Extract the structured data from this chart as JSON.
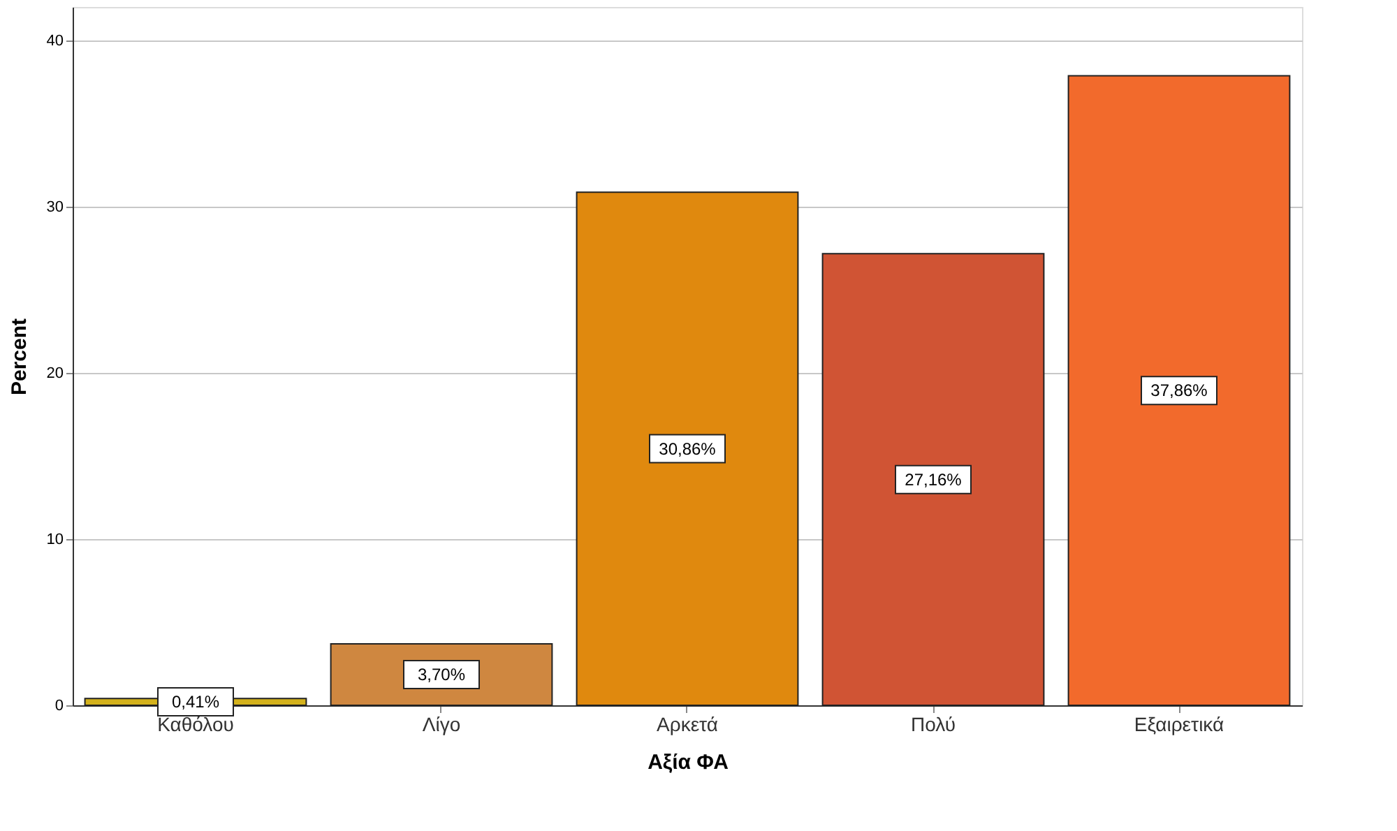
{
  "chart_data": {
    "type": "bar",
    "xlabel": "Αξία ΦΑ",
    "ylabel": "Percent",
    "categories": [
      "Καθόλου",
      "Λίγο",
      "Αρκετά",
      "Πολύ",
      "Εξαιρετικά"
    ],
    "values": [
      0.41,
      3.7,
      30.86,
      27.16,
      37.86
    ],
    "colors": [
      "#d4b21c",
      "#cf8740",
      "#e0890e",
      "#d05434",
      "#f26a2c"
    ],
    "value_labels": [
      "0,41%",
      "3,70%",
      "30,86%",
      "27,16%",
      "37,86%"
    ],
    "ylim": [
      0,
      42
    ],
    "yticks": [
      0,
      10,
      20,
      30,
      40
    ],
    "grid": "y"
  }
}
